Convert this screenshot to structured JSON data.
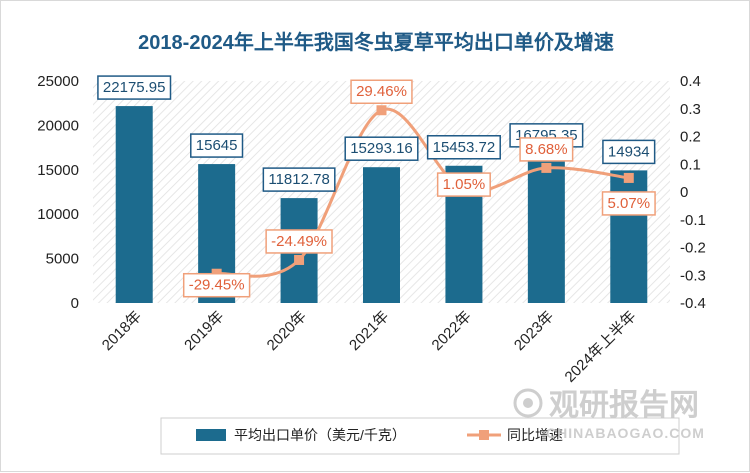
{
  "chart_data": {
    "type": "bar",
    "title": "2018-2024年上半年我国冬虫夏草平均出口单价及增速",
    "categories": [
      "2018年",
      "2019年",
      "2020年",
      "2021年",
      "2022年",
      "2023年",
      "2024年上半年"
    ],
    "series": [
      {
        "name": "平均出口单价（美元/千克）",
        "type": "bar",
        "axis": "left",
        "values": [
          22175.95,
          15645,
          11812.78,
          15293.16,
          15453.72,
          16795.35,
          14934
        ],
        "labels": [
          "22175.95",
          "15645",
          "11812.78",
          "15293.16",
          "15453.72",
          "16795.35",
          "14934"
        ]
      },
      {
        "name": "同比增速",
        "type": "line",
        "axis": "right",
        "values": [
          null,
          -0.2945,
          -0.2449,
          0.2946,
          0.0105,
          0.0868,
          0.0507
        ],
        "labels": [
          "",
          "-29.45%",
          "-24.49%",
          "29.46%",
          "1.05%",
          "8.68%",
          "5.07%"
        ]
      }
    ],
    "ylim_left": [
      0,
      25000
    ],
    "yticks_left": [
      "0",
      "5000",
      "10000",
      "15000",
      "20000",
      "25000"
    ],
    "ylim_right": [
      -0.4,
      0.4
    ],
    "yticks_right": [
      "-0.4",
      "-0.3",
      "-0.2",
      "-0.1",
      "0",
      "0.1",
      "0.2",
      "0.3",
      "0.4"
    ],
    "legend_position": "bottom",
    "colors": {
      "bar": "#1c6b8e",
      "line": "#f0a07a",
      "title": "#1f5a86",
      "bar_label": "#1c4e72",
      "line_label": "#e0603a"
    }
  },
  "watermark": {
    "brand": "观研报告网",
    "url": "CHINABAOGAO.COM"
  }
}
